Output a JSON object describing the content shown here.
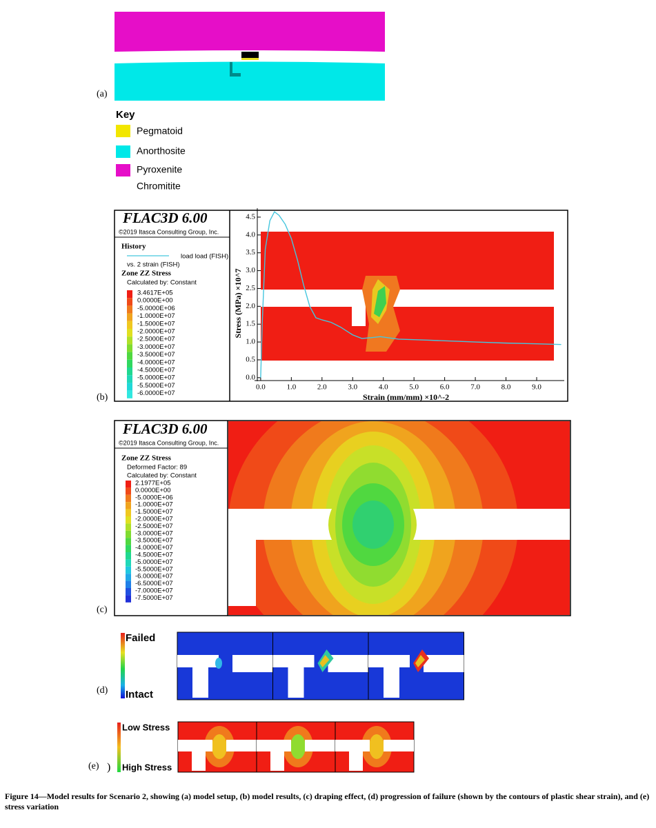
{
  "figure": {
    "panel_labels": [
      "(a)",
      "(b)",
      "(c)",
      "(d)",
      "(e)"
    ],
    "paren": ")",
    "key": {
      "title": "Key",
      "entries": [
        "Pegmatoid",
        "Anorthosite",
        "Pyroxenite",
        "Chromitite"
      ]
    },
    "flac_title": "FLAC3D 6.00",
    "copyright": "©2019 Itasca Consulting Group, Inc.",
    "b_legend": {
      "history": "History",
      "vs": "vs. 2 strain (FISH)",
      "zone": "Zone ZZ Stress",
      "calc": "Calculated by: Constant",
      "values": [
        "3.4617E+05",
        "0.0000E+00",
        "-5.0000E+06",
        "-1.0000E+07",
        "-1.5000E+07",
        "-2.0000E+07",
        "-2.5000E+07",
        "-3.0000E+07",
        "-3.5000E+07",
        "-4.0000E+07",
        "-4.5000E+07",
        "-5.0000E+07",
        "-5.5000E+07",
        "-6.0000E+07"
      ]
    },
    "c_legend": {
      "zone": "Zone ZZ Stress",
      "factor": "Deformed Factor: 89",
      "calc": "Calculated by: Constant",
      "values": [
        "2.1977E+05",
        "0.0000E+00",
        "-5.0000E+06",
        "-1.0000E+07",
        "-1.5000E+07",
        "-2.0000E+07",
        "-2.5000E+07",
        "-3.0000E+07",
        "-3.5000E+07",
        "-4.0000E+07",
        "-4.5000E+07",
        "-5.0000E+07",
        "-5.5000E+07",
        "-6.0000E+07",
        "-6.5000E+07",
        "-7.0000E+07",
        "-7.5000E+07"
      ]
    },
    "d_labels": [
      "Failed",
      "Intact"
    ],
    "e_labels": [
      "Low Stress",
      "High Stress"
    ],
    "caption": "Figure 14—Model results for Scenario 2, showing (a) model setup, (b) model results, (c) draping effect, (d) progression of failure (shown by the contours of plastic shear strain), and (e) stress variation"
  },
  "chart_data": {
    "type": "line",
    "x_label": "Strain (mm/mm) ×10^-2",
    "y_label": "Stress (MPa) ×10^7",
    "x": [
      0,
      0.05,
      0.15,
      0.3,
      0.45,
      0.6,
      0.8,
      1.0,
      1.2,
      1.4,
      1.6,
      1.8,
      2.0,
      2.3,
      2.6,
      3.0,
      3.3,
      3.6,
      3.9,
      4.5,
      5.5,
      7.0,
      8.0,
      9.0,
      9.8
    ],
    "series": [
      {
        "name": "load load (FISH)",
        "color": "#45c6de",
        "values": [
          0,
          1.5,
          3.6,
          4.4,
          4.65,
          4.55,
          4.3,
          3.9,
          3.3,
          2.6,
          2.0,
          1.68,
          1.62,
          1.55,
          1.42,
          1.2,
          1.1,
          1.12,
          1.15,
          1.08,
          1.05,
          1.0,
          0.97,
          0.95,
          0.93
        ]
      }
    ],
    "xlim": [
      -0.2,
      9.9
    ],
    "ylim": [
      -0.1,
      4.75
    ],
    "xticks": [
      {
        "value": 0,
        "label": "0.0"
      },
      {
        "value": 1,
        "label": "1.0"
      },
      {
        "value": 2,
        "label": "2.0"
      },
      {
        "value": 3,
        "label": "3.0"
      },
      {
        "value": 4,
        "label": "4.0"
      },
      {
        "value": 5,
        "label": "5.0"
      },
      {
        "value": 6,
        "label": "6.0"
      },
      {
        "value": 7,
        "label": "7.0"
      },
      {
        "value": 8,
        "label": "8.0"
      },
      {
        "value": 9,
        "label": "9.0"
      }
    ],
    "yticks": [
      {
        "value": 0,
        "label": "0.0"
      },
      0.5,
      {
        "value": 1,
        "label": "1.0"
      },
      1.5,
      {
        "value": 2,
        "label": "2.0"
      },
      2.5,
      {
        "value": 3,
        "label": "3.0"
      },
      3.5,
      {
        "value": 4,
        "label": "4.0"
      },
      4.5
    ]
  }
}
